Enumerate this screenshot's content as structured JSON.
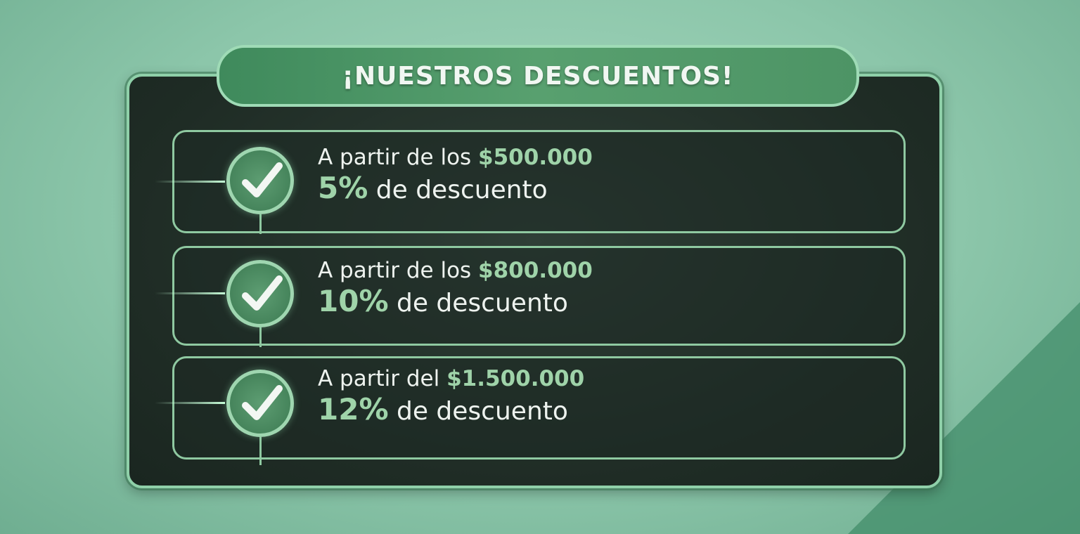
{
  "title": "¡NUESTROS DESCUENTOS!",
  "colors": {
    "accent": "#9fd3a9",
    "panel": "#1f2c25",
    "background": "#8cc6aa"
  },
  "items": [
    {
      "prefix": "A partir de los",
      "amount": "$500.000",
      "percent": "5%",
      "suffix": "de descuento",
      "icon": "check-icon"
    },
    {
      "prefix": "A partir de los",
      "amount": "$800.000",
      "percent": "10%",
      "suffix": "de descuento",
      "icon": "check-icon"
    },
    {
      "prefix": "A partir del",
      "amount": "$1.500.000",
      "percent": "12%",
      "suffix": "de descuento",
      "icon": "check-icon"
    }
  ]
}
